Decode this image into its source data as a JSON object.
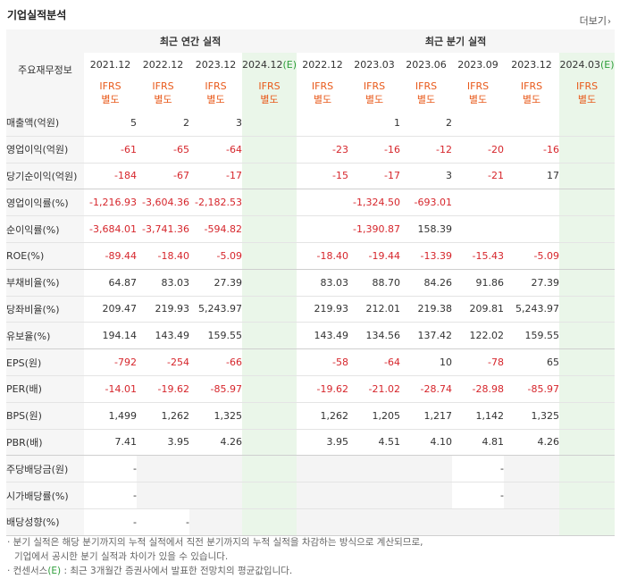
{
  "header": {
    "title": "기업실적분석",
    "more_label": "더보기",
    "more_arrow": "›"
  },
  "columns": {
    "label_header": "주요재무정보",
    "annual_header": "최근 연간 실적",
    "quarter_header": "최근 분기 실적",
    "annual": [
      {
        "period": "2021.12",
        "estimate": false
      },
      {
        "period": "2022.12",
        "estimate": false
      },
      {
        "period": "2023.12",
        "estimate": false
      },
      {
        "period": "2024.12",
        "estimate": true
      }
    ],
    "quarter": [
      {
        "period": "2022.12",
        "estimate": false
      },
      {
        "period": "2023.03",
        "estimate": false
      },
      {
        "period": "2023.06",
        "estimate": false
      },
      {
        "period": "2023.09",
        "estimate": false
      },
      {
        "period": "2023.12",
        "estimate": false
      },
      {
        "period": "2024.03",
        "estimate": true
      }
    ],
    "ifrs_line1": "IFRS",
    "ifrs_line2": "별도",
    "estimate_mark": "(E)"
  },
  "rows": [
    {
      "label": "매출액(억원)",
      "values": [
        "5",
        "2",
        "3",
        "",
        "",
        "1",
        "2",
        "",
        "",
        ""
      ]
    },
    {
      "label": "영업이익(억원)",
      "values": [
        "-61",
        "-65",
        "-64",
        "",
        "-23",
        "-16",
        "-12",
        "-20",
        "-16",
        ""
      ]
    },
    {
      "label": "당기순이익(억원)",
      "values": [
        "-184",
        "-67",
        "-17",
        "",
        "-15",
        "-17",
        "3",
        "-21",
        "17",
        ""
      ]
    },
    {
      "label": "영업이익률(%)",
      "values": [
        "-1,216.93",
        "-3,604.36",
        "-2,182.53",
        "",
        "",
        "-1,324.50",
        "-693.01",
        "",
        "",
        ""
      ]
    },
    {
      "label": "순이익률(%)",
      "values": [
        "-3,684.01",
        "-3,741.36",
        "-594.82",
        "",
        "",
        "-1,390.87",
        "158.39",
        "",
        "",
        ""
      ]
    },
    {
      "label": "ROE(%)",
      "values": [
        "-89.44",
        "-18.40",
        "-5.09",
        "",
        "-18.40",
        "-19.44",
        "-13.39",
        "-15.43",
        "-5.09",
        ""
      ]
    },
    {
      "label": "부채비율(%)",
      "values": [
        "64.87",
        "83.03",
        "27.39",
        "",
        "83.03",
        "88.70",
        "84.26",
        "91.86",
        "27.39",
        ""
      ]
    },
    {
      "label": "당좌비율(%)",
      "values": [
        "209.47",
        "219.93",
        "5,243.97",
        "",
        "219.93",
        "212.01",
        "219.38",
        "209.81",
        "5,243.97",
        ""
      ]
    },
    {
      "label": "유보율(%)",
      "values": [
        "194.14",
        "143.49",
        "159.55",
        "",
        "143.49",
        "134.56",
        "137.42",
        "122.02",
        "159.55",
        ""
      ]
    },
    {
      "label": "EPS(원)",
      "values": [
        "-792",
        "-254",
        "-66",
        "",
        "-58",
        "-64",
        "10",
        "-78",
        "65",
        ""
      ]
    },
    {
      "label": "PER(배)",
      "values": [
        "-14.01",
        "-19.62",
        "-85.97",
        "",
        "-19.62",
        "-21.02",
        "-28.74",
        "-28.98",
        "-85.97",
        ""
      ]
    },
    {
      "label": "BPS(원)",
      "values": [
        "1,499",
        "1,262",
        "1,325",
        "",
        "1,262",
        "1,205",
        "1,217",
        "1,142",
        "1,325",
        ""
      ]
    },
    {
      "label": "PBR(배)",
      "values": [
        "7.41",
        "3.95",
        "4.26",
        "",
        "3.95",
        "4.51",
        "4.10",
        "4.81",
        "4.26",
        ""
      ]
    },
    {
      "label": "주당배당금(원)",
      "values": [
        "-",
        null,
        null,
        "",
        null,
        null,
        null,
        "-",
        null,
        ""
      ]
    },
    {
      "label": "시가배당률(%)",
      "values": [
        "-",
        null,
        null,
        "",
        null,
        null,
        null,
        "-",
        null,
        ""
      ]
    },
    {
      "label": "배당성향(%)",
      "values": [
        "-",
        "-",
        null,
        "",
        null,
        null,
        null,
        null,
        null,
        ""
      ]
    }
  ],
  "notes": {
    "line1": "· 분기 실적은 해당 분기까지의 누적 실적에서 직전 분기까지의 누적 실적을 차감하는 방식으로 계산되므로,",
    "line2": "  기업에서 공시한 분기 실적과 차이가 있을 수 있습니다.",
    "line3_prefix": "· 컨센서스",
    "line3_mark": "(E)",
    "line3_suffix": " : 최근 3개월간 증권사에서 발표한 전망치의 평균값입니다."
  }
}
